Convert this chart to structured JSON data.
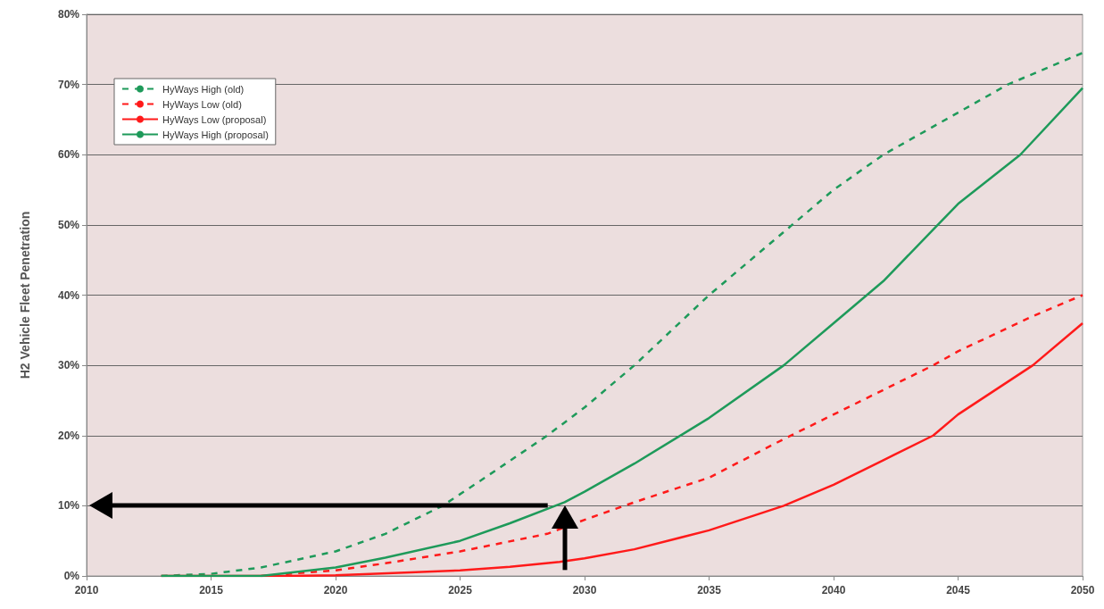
{
  "chart_data": {
    "type": "line",
    "ylabel": "H2 Vehicle Fleet Penetration",
    "xlim": [
      2010,
      2050
    ],
    "xticks": [
      2010,
      2015,
      2020,
      2025,
      2030,
      2035,
      2040,
      2045,
      2050
    ],
    "ylim": [
      0,
      80
    ],
    "yticks": [
      {
        "value": 0,
        "label": "0%"
      },
      {
        "value": 10,
        "label": "10%"
      },
      {
        "value": 20,
        "label": "20%"
      },
      {
        "value": 30,
        "label": "30%"
      },
      {
        "value": 40,
        "label": "40%"
      },
      {
        "value": 50,
        "label": "50%"
      },
      {
        "value": 60,
        "label": "60%"
      },
      {
        "value": 70,
        "label": "70%"
      },
      {
        "value": 80,
        "label": "80%"
      }
    ],
    "grid": "y",
    "legend": "top left",
    "marker": "none",
    "series": [
      {
        "name": "HyWays High (old)",
        "color": "#1e9a5a",
        "line_style": "dashed",
        "x": [
          2013,
          2015,
          2017,
          2020,
          2022,
          2024.3,
          2026,
          2028.5,
          2030,
          2032,
          2035,
          2038,
          2040,
          2042,
          2045,
          2047,
          2050
        ],
        "values": [
          0,
          0.3,
          1.2,
          3.5,
          6,
          10,
          14,
          20,
          24,
          30,
          40,
          49,
          55,
          60,
          66,
          70,
          74.5
        ]
      },
      {
        "name": "HyWays Low (old)",
        "color": "#ff1a1a",
        "line_style": "dashed",
        "x": [
          2017,
          2020,
          2022,
          2025,
          2028.5,
          2030,
          2032,
          2035,
          2038,
          2040,
          2042,
          2044,
          2045,
          2048,
          2050
        ],
        "values": [
          0,
          0.8,
          1.8,
          3.5,
          6,
          8,
          10.5,
          14,
          19.5,
          23,
          26.5,
          30,
          32,
          37,
          40
        ]
      },
      {
        "name": "HyWays Low (proposal)",
        "color": "#ff1a1a",
        "line_style": "solid",
        "x": [
          2013,
          2018,
          2020,
          2023,
          2025,
          2027,
          2029,
          2030,
          2032,
          2035,
          2038,
          2040,
          2042,
          2044,
          2045,
          2048,
          2050
        ],
        "values": [
          0,
          0,
          0.1,
          0.5,
          0.8,
          1.3,
          2,
          2.5,
          3.8,
          6.5,
          10,
          13,
          16.5,
          20,
          23,
          30,
          36
        ]
      },
      {
        "name": "HyWays High (proposal)",
        "color": "#1e9a5a",
        "line_style": "solid",
        "x": [
          2013,
          2017,
          2020,
          2022,
          2025,
          2027,
          2029.2,
          2030,
          2032,
          2035,
          2038,
          2040,
          2042,
          2045,
          2047.5,
          2050
        ],
        "values": [
          0,
          0,
          1.2,
          2.6,
          5,
          7.5,
          10.5,
          12,
          16,
          22.5,
          30,
          36,
          42,
          53,
          60,
          69.5
        ]
      }
    ]
  }
}
